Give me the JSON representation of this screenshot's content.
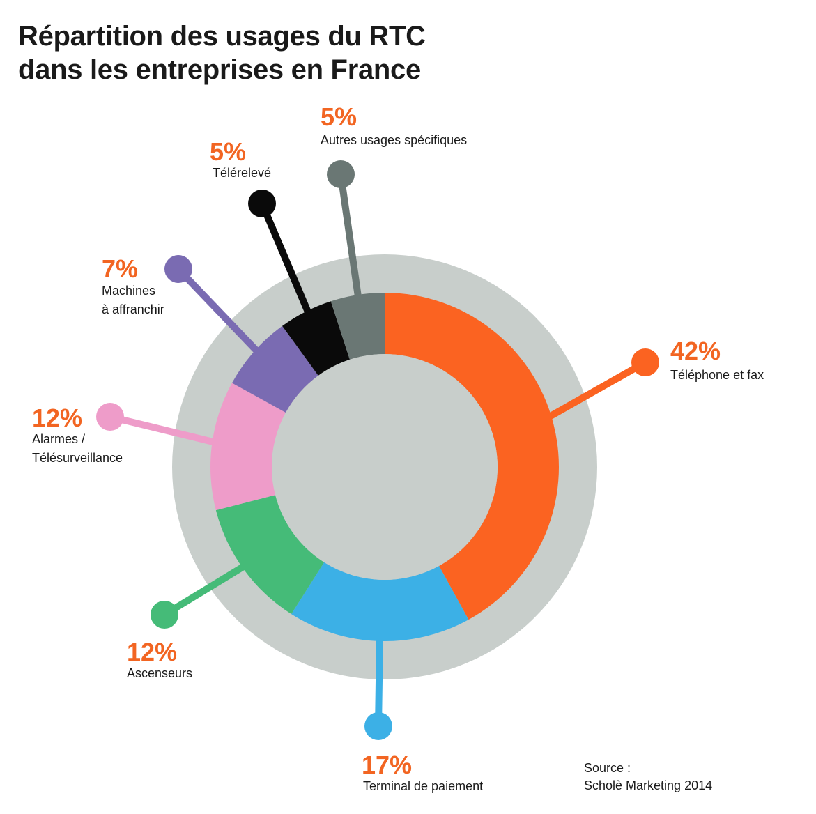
{
  "title": {
    "line1": "Répartition des usages du RTC",
    "line2": "dans les entreprises en France"
  },
  "source": {
    "line1": "Source :",
    "line2": "Scholè Marketing 2014"
  },
  "colors": {
    "outer_ring": "#c8cecb",
    "center": "#c8cecb",
    "percent_text": "#f26522"
  },
  "chart_data": {
    "type": "pie",
    "variant": "donut",
    "unit": "%",
    "slices": [
      {
        "label": "Téléphone et fax",
        "label_lines": [
          "Téléphone et fax"
        ],
        "value": 42,
        "display": "42%",
        "color": "#fb6321"
      },
      {
        "label": "Terminal de paiement",
        "label_lines": [
          "Terminal de paiement"
        ],
        "value": 17,
        "display": "17%",
        "color": "#3cb0e6"
      },
      {
        "label": "Ascenseurs",
        "label_lines": [
          "Ascenseurs"
        ],
        "value": 12,
        "display": "12%",
        "color": "#45bb78"
      },
      {
        "label": "Alarmes / Télésurveillance",
        "label_lines": [
          "Alarmes /",
          "Télésurveillance"
        ],
        "value": 12,
        "display": "12%",
        "color": "#ee9cc9"
      },
      {
        "label": "Machines à affranchir",
        "label_lines": [
          "Machines",
          "à affranchir"
        ],
        "value": 7,
        "display": "7%",
        "color": "#7a6bb2"
      },
      {
        "label": "Télérelevé",
        "label_lines": [
          "Télérelevé"
        ],
        "value": 5,
        "display": "5%",
        "color": "#0a0a0a"
      },
      {
        "label": "Autres usages spécifiques",
        "label_lines": [
          "Autres usages spécifiques"
        ],
        "value": 5,
        "display": "5%",
        "color": "#6a7774"
      }
    ]
  }
}
